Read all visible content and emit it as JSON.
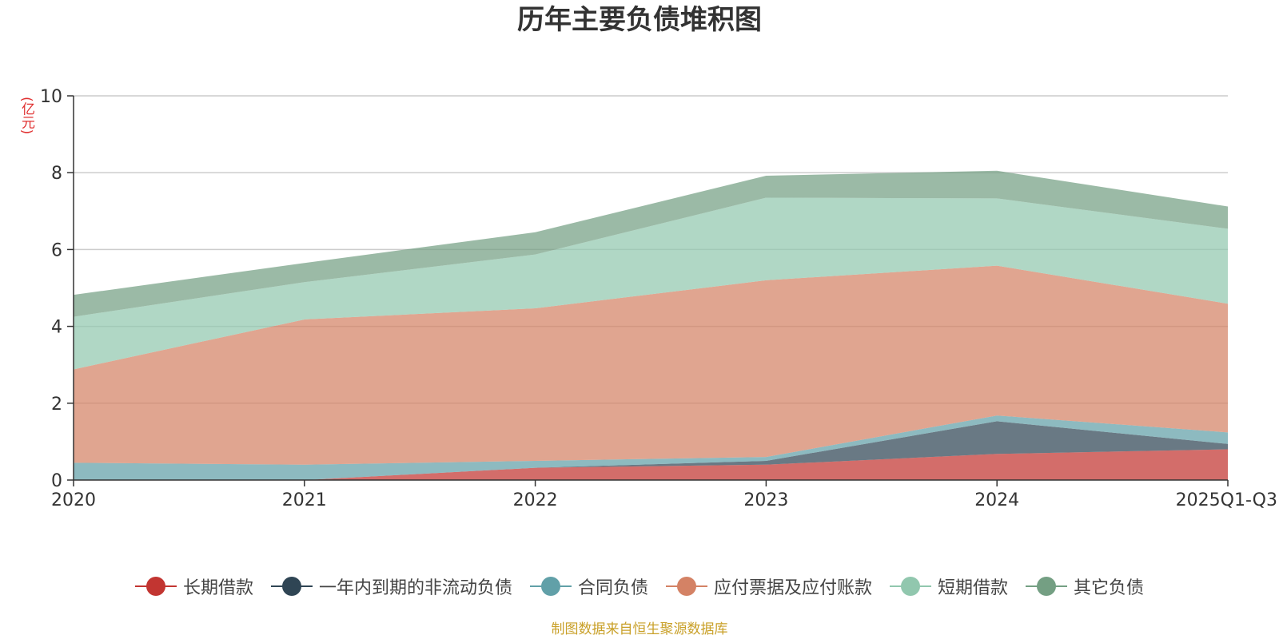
{
  "chart_data": {
    "type": "area",
    "stacked": true,
    "title": "历年主要负债堆积图",
    "ylabel": "(亿元)",
    "xlabel": "",
    "categories": [
      "2020",
      "2021",
      "2022",
      "2023",
      "2024",
      "2025Q1-Q3"
    ],
    "ylim": [
      0,
      10
    ],
    "yticks": [
      0,
      2,
      4,
      6,
      8,
      10
    ],
    "grid": true,
    "legend_position": "bottom",
    "series": [
      {
        "name": "长期借款",
        "color": "#c23531",
        "values": [
          0.0,
          0.0,
          0.32,
          0.4,
          0.68,
          0.8
        ]
      },
      {
        "name": "一年内到期的非流动负债",
        "color": "#2f4554",
        "values": [
          0.0,
          0.0,
          0.0,
          0.1,
          0.85,
          0.14
        ]
      },
      {
        "name": "合同负债",
        "color": "#61a0a8",
        "values": [
          0.45,
          0.4,
          0.18,
          0.1,
          0.15,
          0.3
        ]
      },
      {
        "name": "应付票据及应付账款",
        "color": "#d48265",
        "values": [
          2.43,
          3.78,
          3.97,
          4.6,
          3.9,
          3.35
        ]
      },
      {
        "name": "短期借款",
        "color": "#91c7ae",
        "values": [
          1.37,
          0.97,
          1.4,
          2.15,
          1.75,
          1.95
        ]
      },
      {
        "name": "其它负债",
        "color": "#749f83",
        "values": [
          0.57,
          0.5,
          0.58,
          0.57,
          0.72,
          0.58
        ]
      }
    ]
  },
  "source_note": "制图数据来自恒生聚源数据库"
}
